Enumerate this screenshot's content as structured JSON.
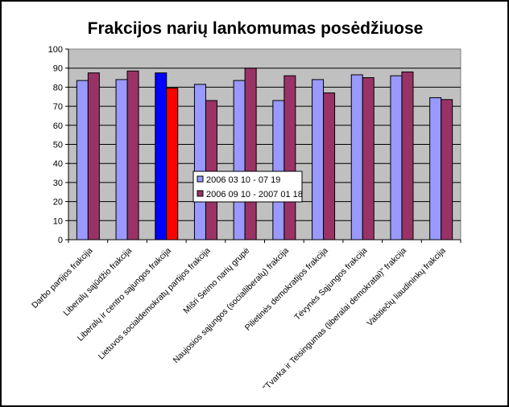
{
  "chart_data": {
    "type": "bar",
    "title": "Frakcijos narių lankomumas posėdžiuose",
    "xlabel": "",
    "ylabel": "",
    "ylim": [
      0,
      100
    ],
    "yticks": [
      0,
      10,
      20,
      30,
      40,
      50,
      60,
      70,
      80,
      90,
      100
    ],
    "grid": true,
    "legend": "center",
    "categories": [
      "Darbo partijos frakcija",
      "Liberalų sąjūdžio frakcija",
      "Liberalų ir centro sąjungos frakcija",
      "Lietuvos socialdemokratų partijos frakcija",
      "Mišri Seimo narių grupė",
      "Naujosios sąjungos (socialliberalų) frakcija",
      "Pilietinės demokratijos frakcija",
      "Tėvynės Sąjungos frakcija",
      "\"Tvarka ir Teisingumas (liberalai demokratai)\" frakcija",
      "Valstiečių liaudininkų frakcija"
    ],
    "series": [
      {
        "name": "2006 03 10 - 07 19",
        "color": "#9999ff",
        "values": [
          83.5,
          84,
          87.5,
          81.5,
          83.5,
          73,
          84,
          86.5,
          86,
          74.5
        ]
      },
      {
        "name": "2006 09 10 - 2007 01 18",
        "color": "#993366",
        "values": [
          87.5,
          88.5,
          79.5,
          73,
          90,
          86,
          77,
          85,
          88,
          73.5
        ]
      }
    ],
    "highlight": {
      "category_index": 2,
      "colors": [
        "#0000ff",
        "#ff0000"
      ]
    },
    "plot_background": "#c0c0c0"
  }
}
